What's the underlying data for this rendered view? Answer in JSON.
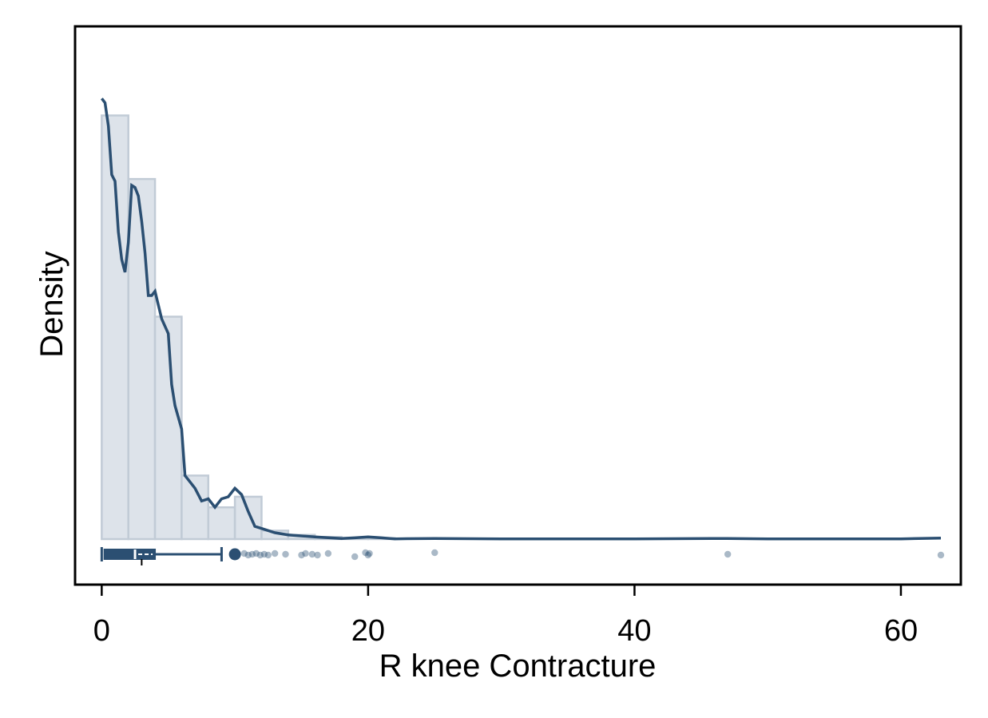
{
  "chart_data": {
    "type": "histogram",
    "xlabel": "R knee Contracture",
    "ylabel": "Density",
    "xlim": [
      -2,
      64.5
    ],
    "x_ticks": [
      0,
      20,
      40,
      60
    ],
    "y_ticks_shown": false,
    "grid": false,
    "histogram": {
      "bin_width": 2,
      "bins": [
        {
          "x0": 0,
          "x1": 2,
          "density": 0.2
        },
        {
          "x0": 2,
          "x1": 4,
          "density": 0.17
        },
        {
          "x0": 4,
          "x1": 6,
          "density": 0.105
        },
        {
          "x0": 6,
          "x1": 8,
          "density": 0.03
        },
        {
          "x0": 8,
          "x1": 10,
          "density": 0.015
        },
        {
          "x0": 10,
          "x1": 12,
          "density": 0.02
        },
        {
          "x0": 12,
          "x1": 14,
          "density": 0.004
        },
        {
          "x0": 14,
          "x1": 16,
          "density": 0.002
        },
        {
          "x0": 16,
          "x1": 18,
          "density": 0.001
        },
        {
          "x0": 18,
          "x1": 20,
          "density": 0.0005
        },
        {
          "x0": 20,
          "x1": 22,
          "density": 0.0005
        }
      ]
    },
    "kde": {
      "x": [
        0,
        0.25,
        0.5,
        0.75,
        1,
        1.25,
        1.5,
        1.75,
        2,
        2.25,
        2.5,
        2.75,
        3,
        3.25,
        3.5,
        3.75,
        4,
        4.5,
        5,
        5.25,
        5.5,
        6,
        6.25,
        6.5,
        7,
        7.5,
        8,
        8.5,
        9,
        9.5,
        10,
        10.5,
        11,
        11.5,
        12,
        13,
        14,
        16,
        18,
        19,
        20,
        21,
        22,
        25,
        30,
        40,
        47,
        50,
        60,
        63
      ],
      "y": [
        0.208,
        0.206,
        0.195,
        0.172,
        0.169,
        0.145,
        0.132,
        0.126,
        0.14,
        0.167,
        0.166,
        0.162,
        0.15,
        0.135,
        0.115,
        0.115,
        0.117,
        0.104,
        0.097,
        0.073,
        0.063,
        0.052,
        0.03,
        0.028,
        0.024,
        0.018,
        0.019,
        0.015,
        0.019,
        0.02,
        0.024,
        0.021,
        0.013,
        0.006,
        0.005,
        0.003,
        0.002,
        0.001,
        0.0003,
        0.0006,
        0.001,
        0.0006,
        0.0001,
        0.0003,
        0.0001,
        0.0001,
        0.0003,
        0.0001,
        0.0001,
        0.0005
      ]
    },
    "ylim": [
      0,
      0.23
    ],
    "boxplot": {
      "min": 0,
      "q1": 0.2,
      "median": 2.5,
      "mean": 3,
      "q3": 4,
      "whisker_high": 9,
      "outliers": [
        10,
        10.7,
        11,
        11.3,
        11.6,
        11.9,
        12.2,
        12.5,
        13,
        13.8,
        15,
        15.3,
        15.8,
        16.2,
        17,
        19,
        19.8,
        20,
        20.1,
        25,
        47,
        63
      ]
    }
  },
  "colors": {
    "line": "#2b4f72",
    "bar_fill": "#dde3ea",
    "bar_stroke": "#c1cbd6",
    "frame": "#000000"
  }
}
